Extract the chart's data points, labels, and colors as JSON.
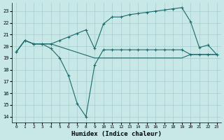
{
  "xlabel": "Humidex (Indice chaleur)",
  "bg_color": "#c8e8e8",
  "grid_color": "#a8cccc",
  "line_color": "#1a6b6b",
  "ylim": [
    13.5,
    23.7
  ],
  "xlim": [
    -0.5,
    23.5
  ],
  "yticks": [
    14,
    15,
    16,
    17,
    18,
    19,
    20,
    21,
    22,
    23
  ],
  "xticks": [
    0,
    1,
    2,
    3,
    4,
    5,
    6,
    7,
    8,
    9,
    10,
    11,
    12,
    13,
    14,
    15,
    16,
    17,
    18,
    19,
    20,
    21,
    22,
    23
  ],
  "line_bottom_x": [
    0,
    1,
    2,
    3,
    4,
    9,
    10,
    11,
    12,
    13,
    14,
    15,
    16,
    17,
    18,
    19,
    20,
    21,
    22,
    23
  ],
  "line_bottom_y": [
    19.5,
    20.5,
    20.2,
    20.2,
    20.2,
    19.0,
    19.0,
    19.0,
    19.0,
    19.0,
    19.0,
    19.0,
    19.0,
    19.0,
    19.0,
    19.0,
    19.3,
    19.3,
    19.3,
    19.3
  ],
  "line_mid_x": [
    0,
    1,
    2,
    3,
    4,
    5,
    6,
    7,
    8,
    9,
    10,
    11,
    12,
    13,
    14,
    15,
    16,
    17,
    18,
    19,
    20,
    21,
    22,
    23
  ],
  "line_mid_y": [
    19.5,
    20.5,
    20.2,
    20.2,
    19.8,
    19.0,
    17.5,
    15.1,
    14.0,
    18.4,
    19.7,
    19.7,
    19.7,
    19.7,
    19.7,
    19.7,
    19.7,
    19.7,
    19.7,
    19.7,
    19.3,
    19.3,
    19.3,
    19.3
  ],
  "line_top_x": [
    0,
    1,
    2,
    3,
    4,
    5,
    6,
    7,
    8,
    9,
    10,
    11,
    12,
    13,
    14,
    15,
    16,
    17,
    18,
    19,
    20,
    21,
    22,
    23
  ],
  "line_top_y": [
    19.5,
    20.5,
    20.2,
    20.2,
    20.2,
    20.5,
    20.8,
    21.1,
    21.4,
    19.8,
    21.9,
    22.5,
    22.5,
    22.7,
    22.8,
    22.9,
    23.0,
    23.1,
    23.2,
    23.3,
    22.1,
    19.9,
    20.1,
    19.3
  ]
}
